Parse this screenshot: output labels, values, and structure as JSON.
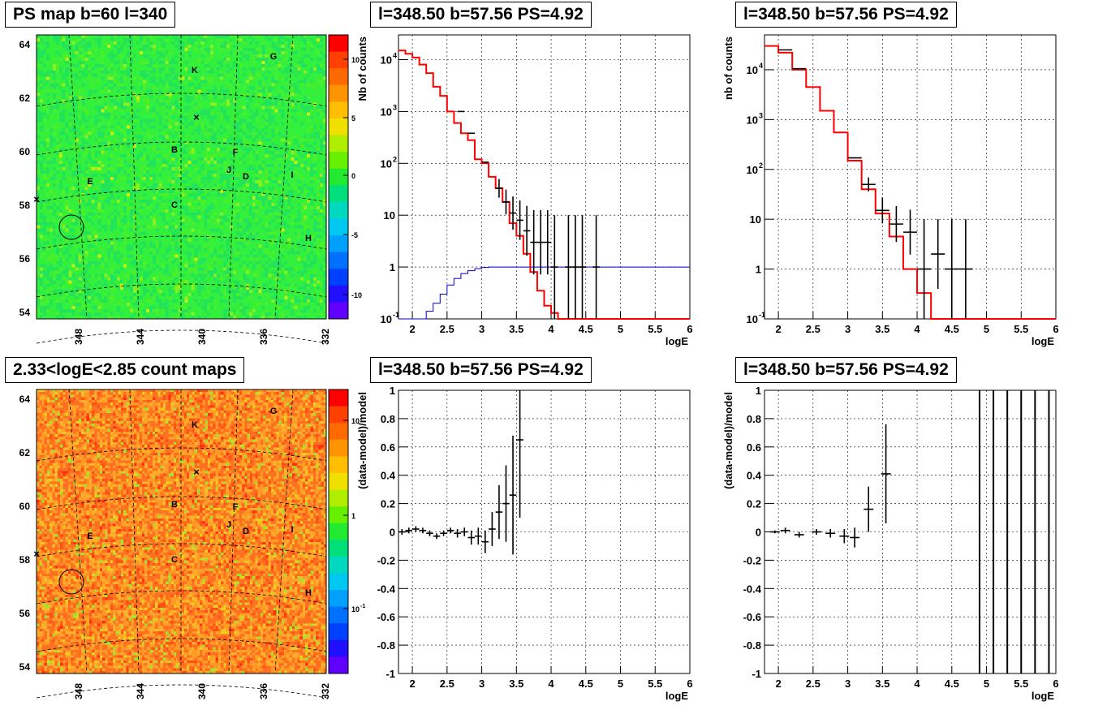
{
  "titles": {
    "ps_map": "PS map b=60 l=340",
    "count_map": "2.33<logE<2.85 count maps",
    "spec1": "l=348.50 b=57.56 PS=4.92",
    "spec2": "l=348.50 b=57.56 PS=4.92",
    "res1": "l=348.50 b=57.56 PS=4.92",
    "res2": "l=348.50 b=57.56 PS=4.92"
  },
  "colors": {
    "data": "#000000",
    "model": "#ff0000",
    "acceptance": "#0000cc",
    "grid": "#000000"
  },
  "chart_data": [
    {
      "type": "heatmap",
      "title": "PS map b=60 l=340",
      "x_ticks": [
        "348",
        "344",
        "340",
        "336",
        "332"
      ],
      "y_ticks": [
        "54",
        "56",
        "58",
        "60",
        "62",
        "64"
      ],
      "colorbar_ticks": [
        "10",
        "5",
        "0",
        "-5",
        "-10"
      ],
      "zlim": [
        -12,
        12
      ],
      "sources": [
        "K",
        "G",
        "B",
        "F",
        "J",
        "D",
        "I",
        "E",
        "C",
        "H"
      ],
      "circle_at": {
        "l": 348.5,
        "b": 57.56
      }
    },
    {
      "type": "heatmap",
      "title": "2.33<logE<2.85 count maps",
      "x_ticks": [
        "348",
        "344",
        "340",
        "336",
        "332"
      ],
      "y_ticks": [
        "54",
        "56",
        "58",
        "60",
        "62",
        "64"
      ],
      "colorbar_ticks": [
        "10",
        "1",
        "10-1"
      ],
      "log_z": true,
      "sources": [
        "K",
        "G",
        "B",
        "F",
        "J",
        "D",
        "I",
        "E",
        "C",
        "H"
      ]
    },
    {
      "type": "line",
      "title": "l=348.50 b=57.56 PS=4.92",
      "xlabel": "logE",
      "ylabel": "Nb of counts",
      "xlim": [
        1.8,
        6
      ],
      "ylim": [
        0.1,
        30000
      ],
      "log_y": true,
      "x_ticks": [
        "2",
        "2.5",
        "3",
        "3.5",
        "4",
        "4.5",
        "5",
        "5.5",
        "6"
      ],
      "y_ticks": [
        "10-1",
        "1",
        "10",
        "102",
        "103",
        "104"
      ],
      "model_step": {
        "edges": [
          1.8,
          1.9,
          2.0,
          2.1,
          2.2,
          2.3,
          2.4,
          2.5,
          2.6,
          2.7,
          2.8,
          2.9,
          3.0,
          3.1,
          3.2,
          3.3,
          3.4,
          3.5,
          3.6,
          3.7,
          3.8,
          3.9,
          4.0,
          4.1,
          4.2,
          6.0
        ],
        "values": [
          15000,
          13000,
          11000,
          8000,
          5500,
          3000,
          2000,
          1000,
          600,
          380,
          280,
          120,
          100,
          55,
          33,
          18,
          7,
          4,
          1.8,
          0.8,
          0.35,
          0.18,
          0.13,
          0.1,
          0.1
        ]
      },
      "acceptance_step": {
        "edges": [
          1.8,
          1.9,
          2.0,
          2.1,
          2.2,
          2.3,
          2.4,
          2.5,
          2.6,
          2.7,
          2.8,
          2.9,
          3.0,
          3.1,
          6.0
        ],
        "values": [
          0.1,
          0.1,
          0.1,
          0.1,
          0.14,
          0.2,
          0.3,
          0.45,
          0.6,
          0.75,
          0.85,
          0.93,
          0.98,
          1.0
        ]
      },
      "data_points": [
        {
          "x": 2.7,
          "y": 1000,
          "xerr": 0.05
        },
        {
          "x": 2.85,
          "y": 380,
          "xerr": 0.05
        },
        {
          "x": 3.05,
          "y": 105,
          "xerr": 0.05
        },
        {
          "x": 3.25,
          "y": 33,
          "xerr": 0.05,
          "yerr": 0.18
        },
        {
          "x": 3.35,
          "y": 18,
          "xerr": 0.05,
          "yerr": 0.24
        },
        {
          "x": 3.45,
          "y": 11,
          "xerr": 0.05,
          "yerr": 0.32
        },
        {
          "x": 3.55,
          "y": 8,
          "xerr": 0.05,
          "yerr": 0.38
        },
        {
          "x": 3.65,
          "y": 5,
          "xerr": 0.05,
          "yerr": 0.48
        },
        {
          "x": 3.75,
          "y": 3,
          "xerr": 0.05,
          "yerr": 0.62
        },
        {
          "x": 3.85,
          "y": 3,
          "xerr": 0.05,
          "yerr": 0.62
        },
        {
          "x": 3.95,
          "y": 3,
          "xerr": 0.05,
          "yerr": 0.62
        },
        {
          "x": 4.05,
          "y": 1,
          "xerr": 0.05,
          "yerr": 1
        },
        {
          "x": 4.25,
          "y": 1,
          "xerr": 0.05,
          "yerr": 1
        },
        {
          "x": 4.35,
          "y": 1,
          "xerr": 0.05,
          "yerr": 1
        },
        {
          "x": 4.45,
          "y": 1,
          "xerr": 0.05,
          "yerr": 1
        },
        {
          "x": 4.65,
          "y": 1,
          "xerr": 0.05,
          "yerr": 1
        }
      ]
    },
    {
      "type": "line",
      "title": "l=348.50 b=57.56 PS=4.92",
      "xlabel": "logE",
      "ylabel": "nb of counts",
      "xlim": [
        1.8,
        6
      ],
      "ylim": [
        0.1,
        50000
      ],
      "log_y": true,
      "x_ticks": [
        "2",
        "2.5",
        "3",
        "3.5",
        "4",
        "4.5",
        "5",
        "5.5",
        "6"
      ],
      "y_ticks": [
        "10-1",
        "1",
        "10",
        "102",
        "103",
        "104"
      ],
      "model_step": {
        "edges": [
          1.8,
          2.0,
          2.2,
          2.4,
          2.6,
          2.8,
          3.0,
          3.2,
          3.4,
          3.6,
          3.8,
          4.0,
          4.2,
          6.0
        ],
        "values": [
          30000,
          22000,
          10000,
          4500,
          1500,
          550,
          150,
          40,
          13,
          4.5,
          1,
          0.33,
          0.1
        ]
      },
      "data_points": [
        {
          "x": 2.1,
          "y": 25000,
          "xerr": 0.1
        },
        {
          "x": 2.3,
          "y": 10500,
          "xerr": 0.1
        },
        {
          "x": 3.1,
          "y": 170,
          "xerr": 0.1
        },
        {
          "x": 3.3,
          "y": 50,
          "xerr": 0.1,
          "yerr": 0.14
        },
        {
          "x": 3.5,
          "y": 15,
          "xerr": 0.1,
          "yerr": 0.26
        },
        {
          "x": 3.7,
          "y": 8,
          "xerr": 0.1,
          "yerr": 0.36
        },
        {
          "x": 3.9,
          "y": 5.5,
          "xerr": 0.1,
          "yerr": 0.45
        },
        {
          "x": 4.1,
          "y": 1,
          "xerr": 0.1,
          "yerr": 1
        },
        {
          "x": 4.3,
          "y": 2,
          "xerr": 0.1,
          "yerr": 0.7
        },
        {
          "x": 4.5,
          "y": 1,
          "xerr": 0.1,
          "yerr": 1
        },
        {
          "x": 4.7,
          "y": 1,
          "xerr": 0.1,
          "yerr": 1
        }
      ]
    },
    {
      "type": "scatter",
      "title": "l=348.50 b=57.56 PS=4.92",
      "xlabel": "logE",
      "ylabel": "(data-model)/model",
      "xlim": [
        1.8,
        6
      ],
      "ylim": [
        -1,
        1
      ],
      "x_ticks": [
        "2",
        "2.5",
        "3",
        "3.5",
        "4",
        "4.5",
        "5",
        "5.5",
        "6"
      ],
      "y_ticks": [
        "1",
        "0.8",
        "0.6",
        "0.4",
        "0.2",
        "0",
        "-0.2",
        "-0.4",
        "-0.6",
        "-0.8",
        "-1"
      ],
      "data_points": [
        {
          "x": 1.85,
          "y": 0.0,
          "xerr": 0.05,
          "yerr": 0.02
        },
        {
          "x": 1.95,
          "y": 0.01,
          "xerr": 0.05,
          "yerr": 0.02
        },
        {
          "x": 2.05,
          "y": 0.02,
          "xerr": 0.05,
          "yerr": 0.02
        },
        {
          "x": 2.15,
          "y": 0.01,
          "xerr": 0.05,
          "yerr": 0.02
        },
        {
          "x": 2.25,
          "y": -0.01,
          "xerr": 0.05,
          "yerr": 0.02
        },
        {
          "x": 2.35,
          "y": -0.03,
          "xerr": 0.05,
          "yerr": 0.02
        },
        {
          "x": 2.45,
          "y": -0.01,
          "xerr": 0.05,
          "yerr": 0.02
        },
        {
          "x": 2.55,
          "y": 0.01,
          "xerr": 0.05,
          "yerr": 0.02
        },
        {
          "x": 2.65,
          "y": -0.01,
          "xerr": 0.05,
          "yerr": 0.03
        },
        {
          "x": 2.75,
          "y": 0.0,
          "xerr": 0.05,
          "yerr": 0.03
        },
        {
          "x": 2.85,
          "y": -0.04,
          "xerr": 0.05,
          "yerr": 0.05
        },
        {
          "x": 2.95,
          "y": -0.03,
          "xerr": 0.05,
          "yerr": 0.06
        },
        {
          "x": 3.05,
          "y": -0.07,
          "xerr": 0.05,
          "yerr": 0.08
        },
        {
          "x": 3.15,
          "y": 0.02,
          "xerr": 0.05,
          "yerr": 0.12
        },
        {
          "x": 3.25,
          "y": 0.14,
          "xerr": 0.05,
          "yerr": 0.19
        },
        {
          "x": 3.35,
          "y": 0.2,
          "xerr": 0.05,
          "yerr": 0.27
        },
        {
          "x": 3.45,
          "y": 0.26,
          "xerr": 0.05,
          "yerr": 0.42
        },
        {
          "x": 3.55,
          "y": 0.65,
          "xerr": 0.05,
          "yerr": 0.55
        }
      ]
    },
    {
      "type": "scatter",
      "title": "l=348.50 b=57.56 PS=4.92",
      "xlabel": "logE",
      "ylabel": "(data-model)/model",
      "xlim": [
        1.8,
        6
      ],
      "ylim": [
        -1,
        1
      ],
      "x_ticks": [
        "2",
        "2.5",
        "3",
        "3.5",
        "4",
        "4.5",
        "5",
        "5.5",
        "6"
      ],
      "y_ticks": [
        "1",
        "0.8",
        "0.6",
        "0.4",
        "0.2",
        "0",
        "-0.2",
        "-0.4",
        "-0.6",
        "-0.8",
        "-1"
      ],
      "data_points": [
        {
          "x": 1.95,
          "y": 0.0,
          "xerr": 0.07,
          "yerr": 0.01
        },
        {
          "x": 2.1,
          "y": 0.01,
          "xerr": 0.07,
          "yerr": 0.02
        },
        {
          "x": 2.3,
          "y": -0.02,
          "xerr": 0.07,
          "yerr": 0.02
        },
        {
          "x": 2.55,
          "y": 0.0,
          "xerr": 0.07,
          "yerr": 0.02
        },
        {
          "x": 2.75,
          "y": -0.01,
          "xerr": 0.07,
          "yerr": 0.03
        },
        {
          "x": 2.95,
          "y": -0.03,
          "xerr": 0.07,
          "yerr": 0.05
        },
        {
          "x": 3.1,
          "y": -0.04,
          "xerr": 0.07,
          "yerr": 0.07
        },
        {
          "x": 3.3,
          "y": 0.16,
          "xerr": 0.07,
          "yerr": 0.16
        },
        {
          "x": 3.55,
          "y": 0.41,
          "xerr": 0.07,
          "yerr": 0.35
        }
      ],
      "vertical_lines_x": [
        4.9,
        5.1,
        5.3,
        5.5,
        5.7,
        5.9
      ]
    }
  ]
}
